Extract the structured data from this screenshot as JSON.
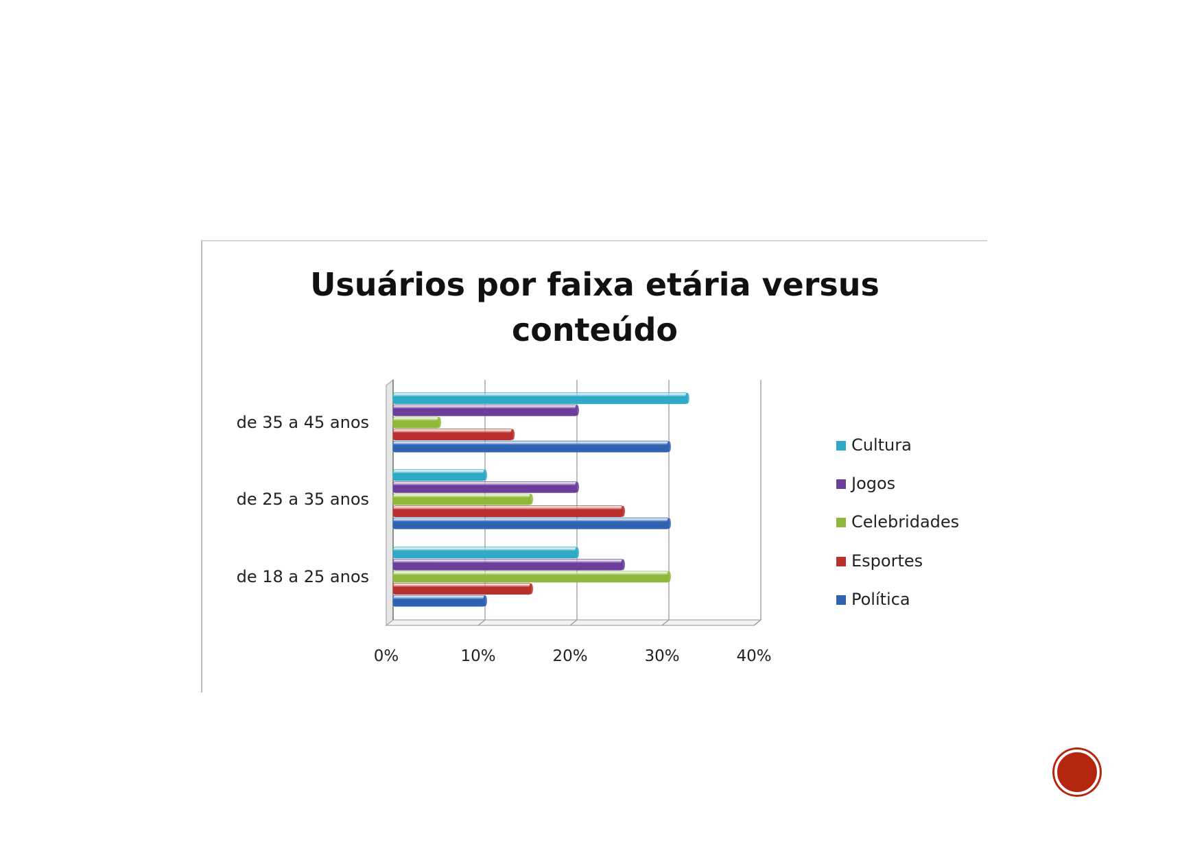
{
  "chart_data": {
    "type": "bar",
    "orientation": "horizontal",
    "title_lines": [
      "Usuários por faixa etária versus",
      "conteúdo"
    ],
    "categories": [
      "de 18 a 25 anos",
      "de 25 a 35 anos",
      "de 35 a 45 anos"
    ],
    "series": [
      {
        "name": "Política",
        "color": "#2e63b4",
        "values": [
          10,
          30,
          30
        ]
      },
      {
        "name": "Esportes",
        "color": "#b9312c",
        "values": [
          15,
          25,
          13
        ]
      },
      {
        "name": "Celebridades",
        "color": "#8fb83a",
        "values": [
          30,
          15,
          5
        ]
      },
      {
        "name": "Jogos",
        "color": "#6a3e9a",
        "values": [
          25,
          20,
          20
        ]
      },
      {
        "name": "Cultura",
        "color": "#2fa9c6",
        "values": [
          20,
          10,
          32
        ]
      }
    ],
    "legend_order": [
      "Cultura",
      "Jogos",
      "Celebridades",
      "Esportes",
      "Política"
    ],
    "x_ticks": [
      "0%",
      "10%",
      "20%",
      "30%",
      "40%"
    ],
    "xlim": [
      0,
      40
    ],
    "grid": true,
    "legend_position": "right"
  }
}
